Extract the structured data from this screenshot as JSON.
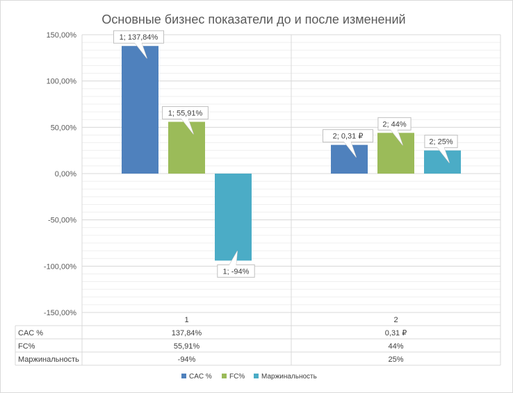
{
  "chart_data": {
    "type": "bar",
    "title": "Основные бизнес показатели до  и  после изменений",
    "categories": [
      "1",
      "2"
    ],
    "ylim": [
      -150,
      150
    ],
    "yticks": [
      150,
      100,
      50,
      0,
      -50,
      -100,
      -150
    ],
    "ytick_labels": [
      "150,00%",
      "100,00%",
      "50,00%",
      "0,00%",
      "-50,00%",
      "-100,00%",
      "-150,00%"
    ],
    "grid": true,
    "legend_position": "bottom",
    "series": [
      {
        "name": "CAC %",
        "color": "#4F81BD",
        "values": [
          137.84,
          31
        ],
        "labels": [
          "1; 137,84%",
          "2;  0,31 ₽"
        ],
        "table": [
          "137,84%",
          "0,31 ₽"
        ]
      },
      {
        "name": "FC%",
        "color": "#9BBB59",
        "values": [
          55.91,
          44
        ],
        "labels": [
          "1; 55,91%",
          "2; 44%"
        ],
        "table": [
          "55,91%",
          "44%"
        ]
      },
      {
        "name": "Маржинальность",
        "color": "#4BACC6",
        "values": [
          -94,
          25
        ],
        "labels": [
          "1; -94%",
          "2; 25%"
        ],
        "table": [
          "-94%",
          "25%"
        ]
      }
    ],
    "table_row_labels": [
      "CAC %",
      "FC%",
      "Маржинальность"
    ]
  }
}
